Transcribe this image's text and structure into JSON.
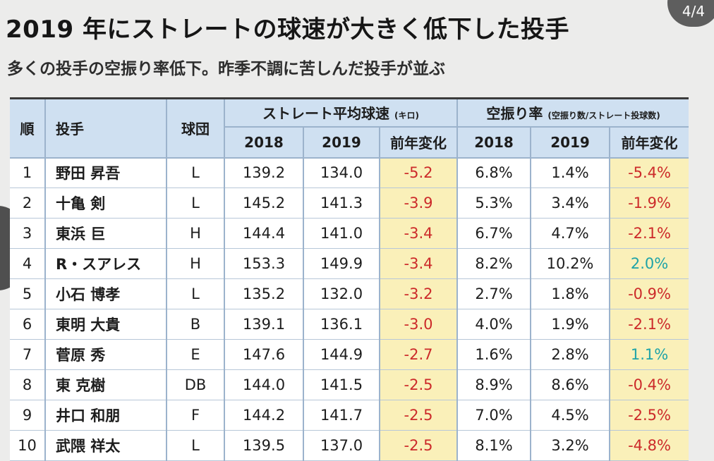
{
  "page_counter": "4/4",
  "title": "2019 年にストレートの球速が大きく低下した投手",
  "subtitle": "多くの投手の空振り率低下。昨季不調に苦しんだ投手が並ぶ",
  "headers": {
    "rank": "順",
    "pitcher": "投手",
    "team": "球団",
    "speed_group": "ストレート平均球速",
    "speed_unit": "(キロ)",
    "swing_group": "空振り率",
    "swing_note": "(空振り数/ストレート投球数)",
    "year1": "2018",
    "year2": "2019",
    "change": "前年変化"
  },
  "colors": {
    "header_bg": "#cfe0f1",
    "highlight_bg": "#faf0b9",
    "negative": "#cc2a2a",
    "positive": "#1ea3a8"
  },
  "rows": [
    {
      "rank": "1",
      "pitcher": "野田 昇吾",
      "team": "L",
      "speed2018": "139.2",
      "speed2019": "134.0",
      "speed_change": "-5.2",
      "swing2018": "6.8%",
      "swing2019": "1.4%",
      "swing_change": "-5.4%",
      "swing_positive": false
    },
    {
      "rank": "2",
      "pitcher": "十亀 剣",
      "team": "L",
      "speed2018": "145.2",
      "speed2019": "141.3",
      "speed_change": "-3.9",
      "swing2018": "5.3%",
      "swing2019": "3.4%",
      "swing_change": "-1.9%",
      "swing_positive": false
    },
    {
      "rank": "3",
      "pitcher": "東浜 巨",
      "team": "H",
      "speed2018": "144.4",
      "speed2019": "141.0",
      "speed_change": "-3.4",
      "swing2018": "6.7%",
      "swing2019": "4.7%",
      "swing_change": "-2.1%",
      "swing_positive": false
    },
    {
      "rank": "4",
      "pitcher": "R・スアレス",
      "team": "H",
      "speed2018": "153.3",
      "speed2019": "149.9",
      "speed_change": "-3.4",
      "swing2018": "8.2%",
      "swing2019": "10.2%",
      "swing_change": "2.0%",
      "swing_positive": true
    },
    {
      "rank": "5",
      "pitcher": "小石 博孝",
      "team": "L",
      "speed2018": "135.2",
      "speed2019": "132.0",
      "speed_change": "-3.2",
      "swing2018": "2.7%",
      "swing2019": "1.8%",
      "swing_change": "-0.9%",
      "swing_positive": false
    },
    {
      "rank": "6",
      "pitcher": "東明 大貴",
      "team": "B",
      "speed2018": "139.1",
      "speed2019": "136.1",
      "speed_change": "-3.0",
      "swing2018": "4.0%",
      "swing2019": "1.9%",
      "swing_change": "-2.1%",
      "swing_positive": false
    },
    {
      "rank": "7",
      "pitcher": "菅原 秀",
      "team": "E",
      "speed2018": "147.6",
      "speed2019": "144.9",
      "speed_change": "-2.7",
      "swing2018": "1.6%",
      "swing2019": "2.8%",
      "swing_change": "1.1%",
      "swing_positive": true
    },
    {
      "rank": "8",
      "pitcher": "東 克樹",
      "team": "DB",
      "speed2018": "144.0",
      "speed2019": "141.5",
      "speed_change": "-2.5",
      "swing2018": "8.9%",
      "swing2019": "8.6%",
      "swing_change": "-0.4%",
      "swing_positive": false
    },
    {
      "rank": "9",
      "pitcher": "井口 和朋",
      "team": "F",
      "speed2018": "144.2",
      "speed2019": "141.7",
      "speed_change": "-2.5",
      "swing2018": "7.0%",
      "swing2019": "4.5%",
      "swing_change": "-2.5%",
      "swing_positive": false
    },
    {
      "rank": "10",
      "pitcher": "武隈 祥太",
      "team": "L",
      "speed2018": "139.5",
      "speed2019": "137.0",
      "speed_change": "-2.5",
      "swing2018": "8.1%",
      "swing2019": "3.2%",
      "swing_change": "-4.8%",
      "swing_positive": false
    }
  ]
}
